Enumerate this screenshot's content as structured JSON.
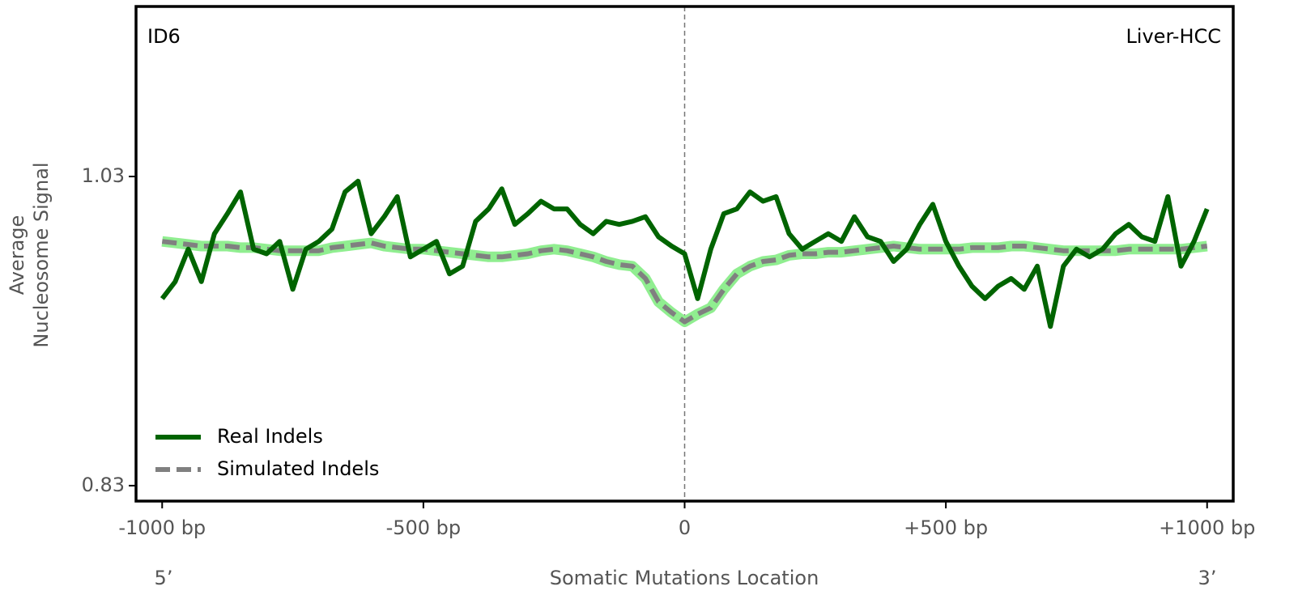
{
  "chart_data": {
    "type": "line",
    "annotations": {
      "top_left": "ID6",
      "top_right": "Liver-HCC",
      "x_left": "5’",
      "x_right": "3’"
    },
    "xlabel": "Somatic Mutations Location",
    "ylabel": [
      "Average",
      "Nucleosome Signal"
    ],
    "xlim": [
      -1050,
      1050
    ],
    "ylim": [
      0.82,
      1.14
    ],
    "xticks": [
      {
        "value": -1000,
        "label": "-1000 bp"
      },
      {
        "value": -500,
        "label": "-500 bp"
      },
      0,
      {
        "value": 500,
        "label": "+500 bp"
      },
      {
        "value": 1000,
        "label": "+1000 bp"
      }
    ],
    "yticks": [
      0.83,
      1.03
    ],
    "vline": 0,
    "grid": false,
    "legend": "lower left",
    "x": [
      -1000,
      -975,
      -950,
      -925,
      -900,
      -875,
      -850,
      -825,
      -800,
      -775,
      -750,
      -725,
      -700,
      -675,
      -650,
      -625,
      -600,
      -575,
      -550,
      -525,
      -500,
      -475,
      -450,
      -425,
      -400,
      -375,
      -350,
      -325,
      -300,
      -275,
      -250,
      -225,
      -200,
      -175,
      -150,
      -125,
      -100,
      -75,
      -50,
      -25,
      0,
      25,
      50,
      75,
      100,
      125,
      150,
      175,
      200,
      225,
      250,
      275,
      300,
      325,
      350,
      375,
      400,
      425,
      450,
      475,
      500,
      525,
      550,
      575,
      600,
      625,
      650,
      675,
      700,
      725,
      750,
      775,
      800,
      825,
      850,
      875,
      900,
      925,
      950,
      975,
      1000
    ],
    "series": [
      {
        "name": "Real Indels",
        "color": "#006400",
        "dashed": false,
        "values": [
          0.951,
          0.962,
          0.983,
          0.962,
          0.993,
          1.006,
          1.02,
          0.983,
          0.98,
          0.988,
          0.957,
          0.983,
          0.988,
          0.996,
          1.02,
          1.027,
          0.993,
          1.004,
          1.017,
          0.978,
          0.983,
          0.988,
          0.967,
          0.972,
          1.001,
          1.009,
          1.022,
          0.999,
          1.006,
          1.014,
          1.009,
          1.009,
          0.999,
          0.993,
          1.001,
          0.999,
          1.001,
          1.004,
          0.991,
          0.985,
          0.98,
          0.951,
          0.983,
          1.006,
          1.009,
          1.02,
          1.014,
          1.017,
          0.993,
          0.983,
          0.988,
          0.993,
          0.988,
          1.004,
          0.991,
          0.988,
          0.975,
          0.983,
          0.999,
          1.012,
          0.988,
          0.972,
          0.959,
          0.951,
          0.959,
          0.964,
          0.957,
          0.972,
          0.933,
          0.972,
          0.983,
          0.978,
          0.983,
          0.993,
          0.999,
          0.991,
          0.988,
          1.017,
          0.972,
          0.988,
          1.009
        ]
      },
      {
        "name": "Simulated Indels",
        "color": "#808080",
        "band_color": "#90ee90",
        "dashed": true,
        "values": [
          0.988,
          0.987,
          0.986,
          0.985,
          0.985,
          0.985,
          0.984,
          0.984,
          0.983,
          0.982,
          0.982,
          0.982,
          0.982,
          0.984,
          0.985,
          0.986,
          0.987,
          0.985,
          0.984,
          0.983,
          0.983,
          0.982,
          0.981,
          0.98,
          0.979,
          0.978,
          0.978,
          0.979,
          0.98,
          0.982,
          0.983,
          0.982,
          0.98,
          0.978,
          0.975,
          0.973,
          0.972,
          0.964,
          0.949,
          0.942,
          0.936,
          0.941,
          0.945,
          0.957,
          0.967,
          0.972,
          0.975,
          0.976,
          0.979,
          0.98,
          0.98,
          0.981,
          0.981,
          0.982,
          0.983,
          0.984,
          0.985,
          0.984,
          0.983,
          0.983,
          0.983,
          0.983,
          0.984,
          0.984,
          0.984,
          0.985,
          0.985,
          0.984,
          0.983,
          0.982,
          0.982,
          0.982,
          0.982,
          0.982,
          0.983,
          0.983,
          0.983,
          0.983,
          0.983,
          0.984,
          0.985
        ]
      }
    ]
  }
}
